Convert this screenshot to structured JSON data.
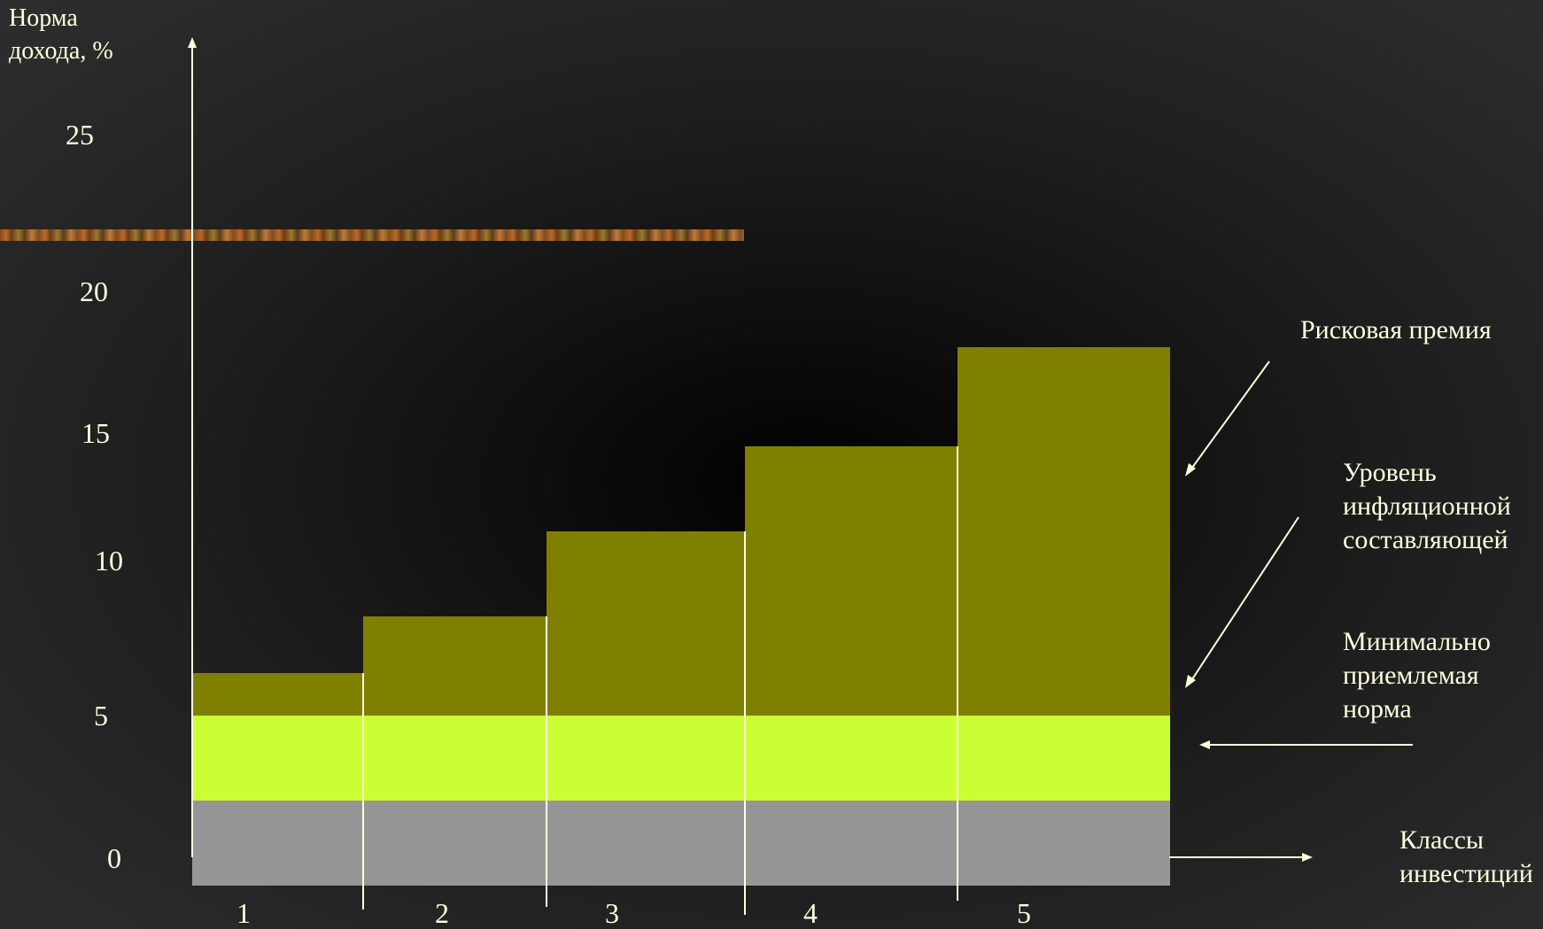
{
  "chart_data": {
    "type": "bar",
    "ylabel": "Норма дохода, %",
    "xlabel": "Классы инвестиций",
    "categories": [
      "1",
      "2",
      "3",
      "4",
      "5"
    ],
    "yticks": [
      0,
      5,
      10,
      15,
      20,
      25
    ],
    "series": [
      {
        "name": "Минимально приемлемая норма",
        "values": [
          3,
          3,
          3,
          3,
          3
        ],
        "color": "#969696"
      },
      {
        "name": "Уровень инфляционной составляющей",
        "values": [
          3,
          3,
          3,
          3,
          3
        ],
        "color": "#ccff33"
      },
      {
        "name": "Рисковая премия",
        "values": [
          1.5,
          3.5,
          6.5,
          9.5,
          13
        ],
        "color": "#808000"
      }
    ],
    "totals": [
      7.5,
      9.5,
      12.5,
      15.5,
      19
    ]
  },
  "annotations": {
    "risk": "Рисковая премия",
    "inflation": [
      "Уровень",
      "инфляционной",
      "составляющей"
    ],
    "minimum": [
      "Минимально",
      "приемлемая",
      "норма"
    ],
    "classes": [
      "Классы",
      "инвестиций"
    ]
  },
  "ylabel_lines": [
    "Норма",
    "дохода, %"
  ],
  "colors": {
    "text": "#ffffe0",
    "axis": "#ffffe0"
  }
}
